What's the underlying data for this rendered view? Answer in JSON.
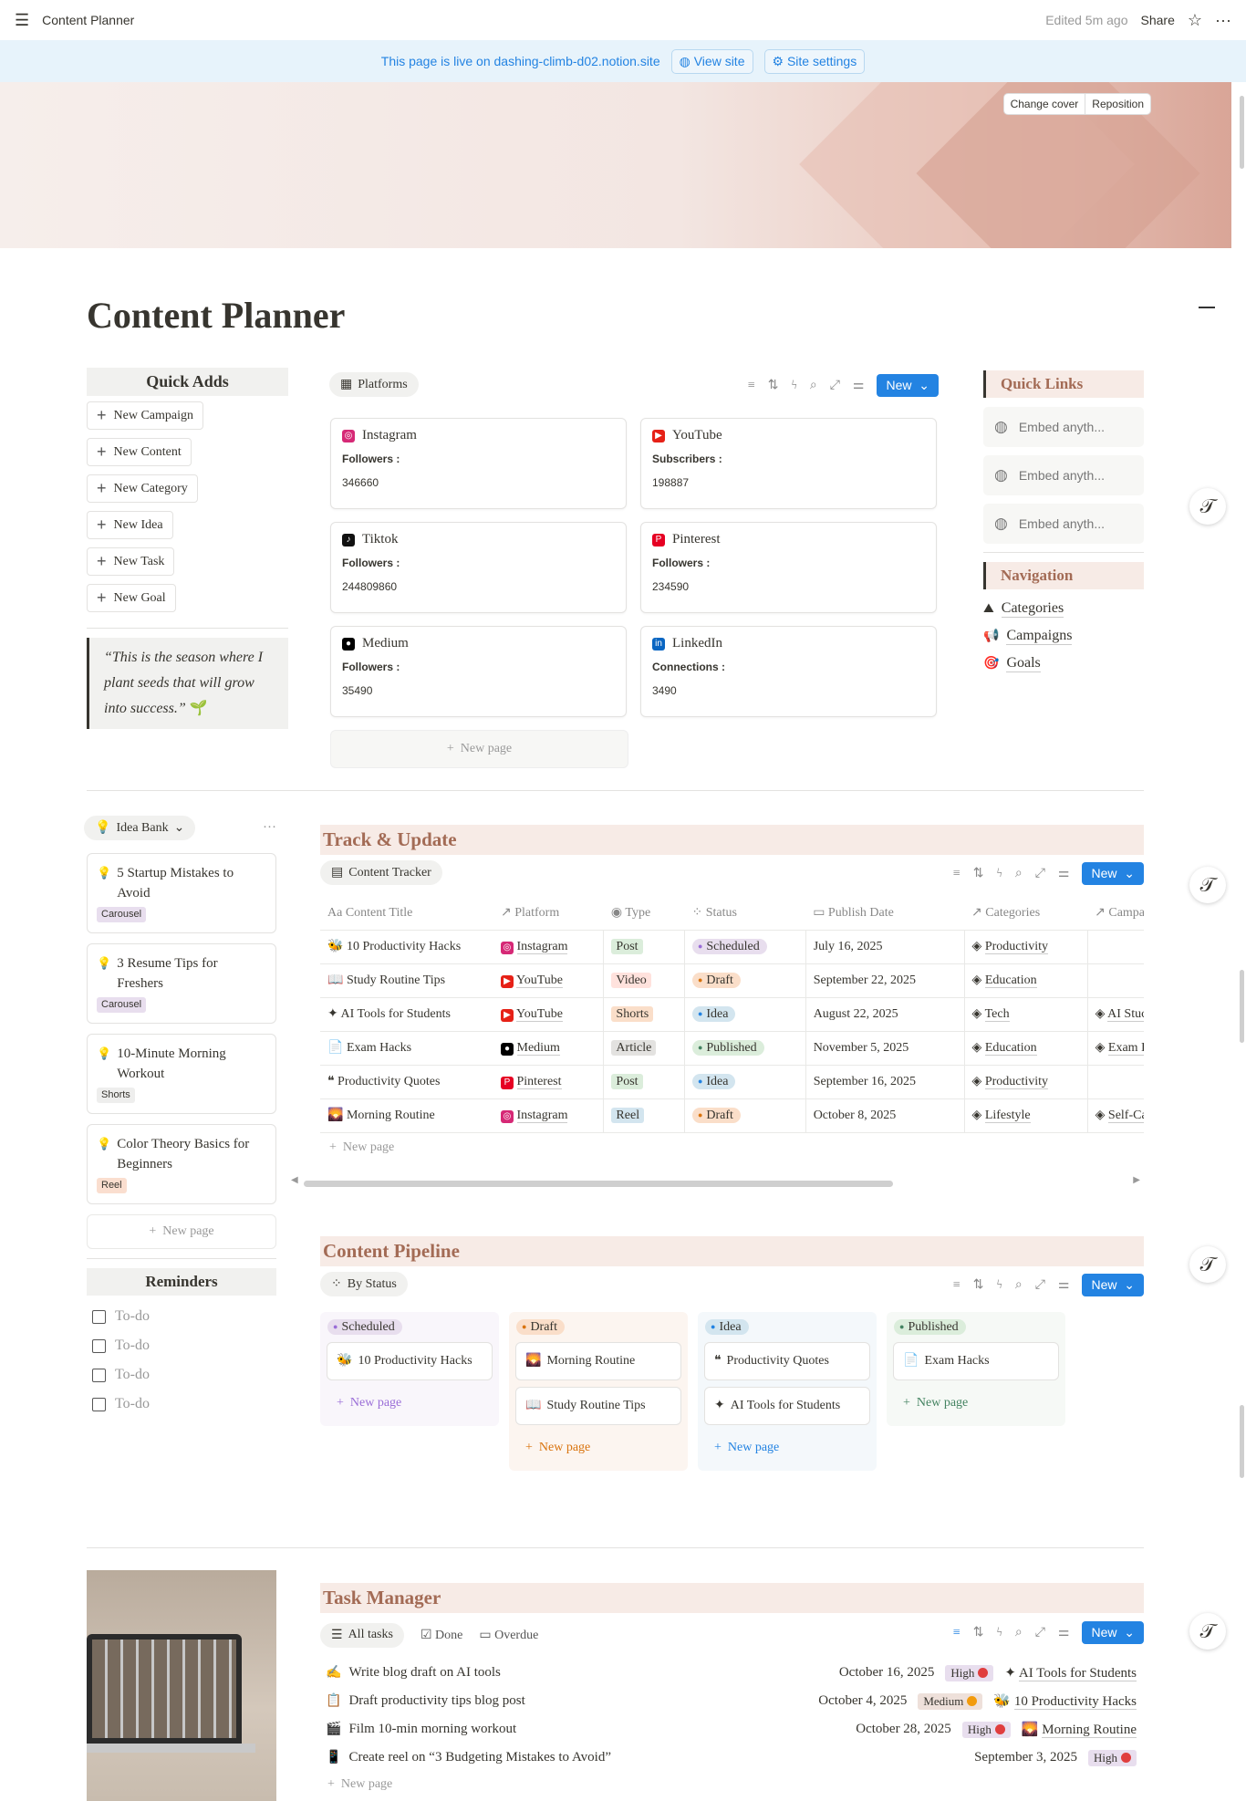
{
  "topbar": {
    "title": "Content Planner",
    "edited": "Edited 5m ago",
    "share": "Share"
  },
  "banner": {
    "text": "This page is live on dashing-climb-d02.notion.site",
    "view_site": "View site",
    "site_settings": "Site settings"
  },
  "cover": {
    "change": "Change cover",
    "reposition": "Reposition"
  },
  "page_title": "Content Planner",
  "quick_adds": {
    "title": "Quick Adds",
    "items": [
      "New Campaign",
      "New Content",
      "New Category",
      "New Idea",
      "New Task",
      "New Goal"
    ]
  },
  "quote": "“This is the season where I plant seeds that will grow into success.”",
  "platforms": {
    "view": "Platforms",
    "new": "New",
    "new_page": "New page",
    "cards": [
      {
        "name": "Instagram",
        "label": "Followers :",
        "value": "346660",
        "icon": "instagram-icon",
        "color": "#d62976"
      },
      {
        "name": "YouTube",
        "label": "Subscribers :",
        "value": "198887",
        "icon": "youtube-icon",
        "color": "#e62117"
      },
      {
        "name": "Tiktok",
        "label": "Followers :",
        "value": "244809860",
        "icon": "tiktok-icon",
        "color": "#111111"
      },
      {
        "name": "Pinterest",
        "label": "Followers :",
        "value": "234590",
        "icon": "pinterest-icon",
        "color": "#e60023"
      },
      {
        "name": "Medium",
        "label": "Followers :",
        "value": "35490",
        "icon": "medium-icon",
        "color": "#000000"
      },
      {
        "name": "LinkedIn",
        "label": "Connections :",
        "value": "3490",
        "icon": "linkedin-icon",
        "color": "#0a66c2"
      }
    ]
  },
  "quick_links": {
    "title": "Quick Links",
    "embeds": [
      "Embed anyth...",
      "Embed anyth...",
      "Embed anyth..."
    ]
  },
  "navigation": {
    "title": "Navigation",
    "items": [
      {
        "label": "Categories",
        "icon": "⛰"
      },
      {
        "label": "Campaigns",
        "icon": "📢"
      },
      {
        "label": "Goals",
        "icon": "🎯"
      }
    ]
  },
  "idea_bank": {
    "view": "Idea Bank",
    "new_page": "New page",
    "items": [
      {
        "title": "5 Startup Mistakes to Avoid",
        "tag": "Carousel"
      },
      {
        "title": "3 Resume Tips for Freshers",
        "tag": "Carousel"
      },
      {
        "title": "10-Minute Morning Workout",
        "tag": "Shorts"
      },
      {
        "title": "Color Theory Basics for Beginners",
        "tag": "Reel"
      }
    ]
  },
  "reminders": {
    "title": "Reminders",
    "items": [
      "To-do",
      "To-do",
      "To-do",
      "To-do"
    ]
  },
  "track": {
    "title": "Track & Update",
    "view": "Content Tracker",
    "new": "New",
    "new_page": "New page",
    "columns": [
      "Content Title",
      "Platform",
      "Type",
      "Status",
      "Publish Date",
      "Categories",
      "Campa"
    ],
    "rows": [
      {
        "icon": "🐝",
        "title": "10 Productivity Hacks",
        "platform": "Instagram",
        "type": "Post",
        "status": "Scheduled",
        "date": "July 16, 2025",
        "category": "Productivity",
        "campaign": ""
      },
      {
        "icon": "📖",
        "title": "Study Routine Tips",
        "platform": "YouTube",
        "type": "Video",
        "status": "Draft",
        "date": "September 22, 2025",
        "category": "Education",
        "campaign": ""
      },
      {
        "icon": "✦",
        "title": "AI Tools for Students",
        "platform": "YouTube",
        "type": "Shorts",
        "status": "Idea",
        "date": "August 22, 2025",
        "category": "Tech",
        "campaign": "AI Stuc"
      },
      {
        "icon": "📄",
        "title": "Exam Hacks",
        "platform": "Medium",
        "type": "Article",
        "status": "Published",
        "date": "November 5, 2025",
        "category": "Education",
        "campaign": "Exam I"
      },
      {
        "icon": "❝",
        "title": "Productivity Quotes",
        "platform": "Pinterest",
        "type": "Post",
        "status": "Idea",
        "date": "September 16, 2025",
        "category": "Productivity",
        "campaign": ""
      },
      {
        "icon": "🌄",
        "title": "Morning Routine",
        "platform": "Instagram",
        "type": "Reel",
        "status": "Draft",
        "date": "October 8, 2025",
        "category": "Lifestyle",
        "campaign": "Self-Ca"
      }
    ]
  },
  "pipeline": {
    "title": "Content Pipeline",
    "view": "By Status",
    "new": "New",
    "columns": [
      {
        "status": "Scheduled",
        "items": [
          "10 Productivity Hacks"
        ],
        "new_page": "New page"
      },
      {
        "status": "Draft",
        "items": [
          "Morning Routine",
          "Study Routine Tips"
        ],
        "new_page": "New page"
      },
      {
        "status": "Idea",
        "items": [
          "Productivity Quotes",
          "AI Tools for Students"
        ],
        "new_page": "New page"
      },
      {
        "status": "Published",
        "items": [
          "Exam Hacks"
        ],
        "new_page": "New page"
      }
    ]
  },
  "tasks": {
    "title": "Task Manager",
    "tabs": [
      "All tasks",
      "Done",
      "Overdue"
    ],
    "new": "New",
    "new_page": "New page",
    "items": [
      {
        "icon": "✍",
        "title": "Write blog draft on AI tools",
        "date": "October 16, 2025",
        "priority": "High",
        "content": "AI Tools for Students"
      },
      {
        "icon": "📋",
        "title": "Draft productivity tips blog post",
        "date": "October 4, 2025",
        "priority": "Medium",
        "content": "10 Productivity Hacks"
      },
      {
        "icon": "🎬",
        "title": "Film 10-min morning workout",
        "date": "October 28, 2025",
        "priority": "High",
        "content": "Morning Routine"
      },
      {
        "icon": "📱",
        "title": "Create reel on “3 Budgeting Mistakes to Avoid”",
        "date": "September 3, 2025",
        "priority": "High",
        "content": ""
      }
    ]
  },
  "colors": {
    "accent": "#2383e2",
    "section_header": "#a36b55",
    "scheduled": "#e8deee",
    "draft": "#fadec9",
    "idea": "#d3e5ef",
    "published": "#dbeddb",
    "high": "#e8deee",
    "medium": "#eee0da"
  }
}
